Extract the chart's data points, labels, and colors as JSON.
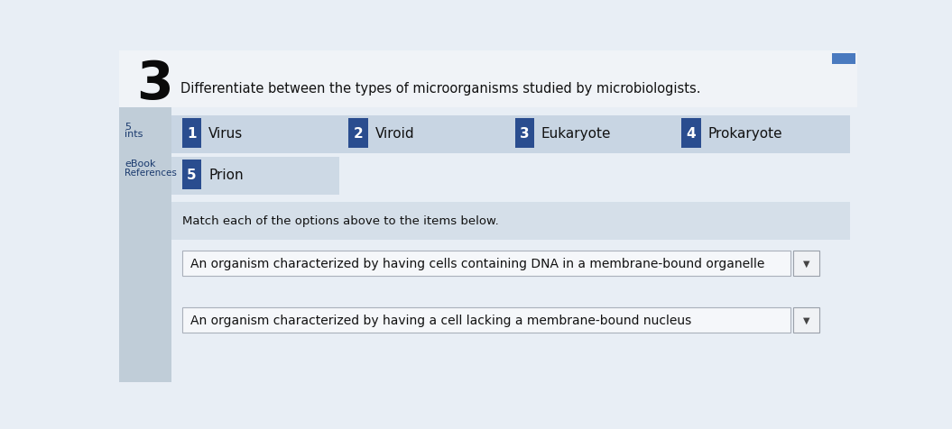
{
  "question_number": "3",
  "question_text": "Differentiate between the types of microorganisms studied by microbiologists.",
  "sidebar_items": [
    "5",
    "ints",
    "eBook",
    "References"
  ],
  "options": [
    {
      "num": "1",
      "label": "Virus"
    },
    {
      "num": "2",
      "label": "Viroid"
    },
    {
      "num": "3",
      "label": "Eukaryote"
    },
    {
      "num": "4",
      "label": "Prokaryote"
    }
  ],
  "option5": {
    "num": "5",
    "label": "Prion"
  },
  "match_instruction": "Match each of the options above to the items below.",
  "questions": [
    "An organism characterized by having cells containing DNA in a membrane-bound organelle",
    "An organism characterized by having a cell lacking a membrane-bound nucleus"
  ],
  "bg_color": "#e8eef5",
  "main_content_bg": "#e8eef5",
  "number_badge_color": "#2a4d8f",
  "option_row_bg": "#c8d5e3",
  "option_row2_bg": "#cdd9e5",
  "match_area_bg": "#d5dfe9",
  "question_box_bg": "#f5f7fa",
  "question_box_border": "#aab0bb",
  "dropdown_box_bg": "#f0f2f5",
  "dropdown_box_border": "#9aa0aa",
  "sidebar_bg": "#c0cdd8",
  "top_bg": "#ffffff",
  "font_color": "#111111",
  "sidebar_text_color": "#1a3a6e",
  "badge_text_color": "#ffffff",
  "top_right_btn_color": "#4a7abf",
  "question_num_color": "#0a0a0a"
}
